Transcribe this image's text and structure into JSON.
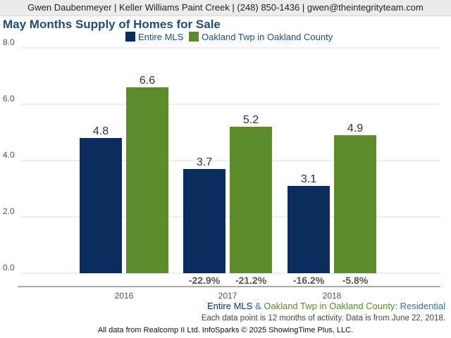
{
  "header": {
    "contact": "Gwen Daubenmeyer | Keller Williams Paint Creek | (248) 850-1436 | gwen@theintegrityteam.com"
  },
  "chart_data": {
    "type": "bar",
    "title": "May Months Supply of Homes for Sale",
    "categories": [
      "2016",
      "2017",
      "2018"
    ],
    "ylim": [
      0,
      8
    ],
    "yticks": [
      "0.0",
      "2.0",
      "4.0",
      "6.0",
      "8.0"
    ],
    "grid": true,
    "legend_position": "top",
    "series": [
      {
        "name": "Entire MLS",
        "color": "#0b2d5e",
        "values": [
          4.8,
          3.7,
          3.1
        ],
        "labels": [
          "4.8",
          "3.7",
          "3.1"
        ],
        "changes": [
          "",
          "-22.9%",
          "-16.2%"
        ]
      },
      {
        "name": "Oakland Twp in Oakland County",
        "color": "#5e8c2d",
        "values": [
          6.6,
          5.2,
          4.9
        ],
        "labels": [
          "6.6",
          "5.2",
          "4.9"
        ],
        "changes": [
          "",
          "-21.2%",
          "-5.8%"
        ]
      }
    ]
  },
  "footer": {
    "legend": {
      "series1": "Entire MLS",
      "amp": " & ",
      "series2": "Oakland Twp in Oakland County",
      "colon": ": ",
      "type": "Residential",
      "color1": "#0b2d5e",
      "color2": "#5e8c2d",
      "color3": "#3a6ea5"
    },
    "note": "Each data point is 12 months of activity. Data is from June 22, 2018.",
    "copyright": "All data from Realcomp II Ltd. InfoSparks © 2025 ShowingTime Plus, LLC."
  }
}
